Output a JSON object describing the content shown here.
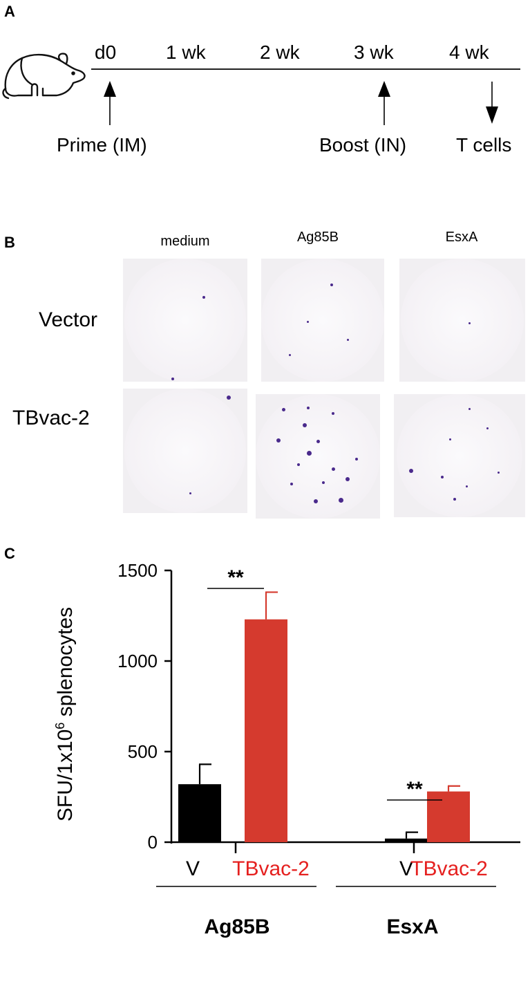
{
  "panels": {
    "a": "A",
    "b": "B",
    "c": "C"
  },
  "timeline": {
    "ticks": [
      "d0",
      "1 wk",
      "2 wk",
      "3 wk",
      "4 wk"
    ],
    "events": {
      "prime": "Prime (IM)",
      "boost": "Boost (IN)",
      "tcells": "T cells"
    }
  },
  "elispot": {
    "columns": [
      "medium",
      "Ag85B",
      "EsxA"
    ],
    "rows": [
      "Vector",
      "TBvac-2"
    ]
  },
  "chart_data": {
    "type": "bar",
    "ylabel_prefix": "SFU/1x10",
    "ylabel_sup": "6",
    "ylabel_suffix": " splenocytes",
    "ylim": [
      0,
      1500
    ],
    "yticks": [
      0,
      500,
      1000,
      1500
    ],
    "groups": [
      {
        "name": "Ag85B",
        "bars": [
          {
            "label": "V",
            "value": 320,
            "error": 110
          },
          {
            "label": "TBvac-2",
            "value": 1230,
            "error": 150
          }
        ],
        "significance": "**"
      },
      {
        "name": "EsxA",
        "bars": [
          {
            "label": "V",
            "value": 20,
            "error": 35
          },
          {
            "label": "TBvac-2",
            "value": 280,
            "error": 30
          }
        ],
        "significance": "**"
      }
    ],
    "colors": {
      "V": "#000000",
      "TBvac-2": "#d53a2e",
      "label_tbvac": "#e5201f"
    }
  }
}
